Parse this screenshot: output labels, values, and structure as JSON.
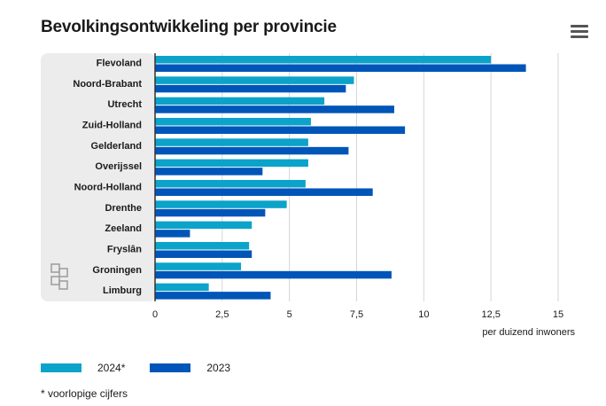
{
  "title": "Bevolkingsontwikkeling per provincie",
  "footnote": "* voorlopige cijfers",
  "icons": {
    "menu": "hamburger-menu-icon",
    "logo": "cbs-logo-icon"
  },
  "colors": {
    "series_2024": "#0ba3c9",
    "series_2023": "#0055b8",
    "panel": "#ececec",
    "grid": "#d6d6d6"
  },
  "chart_data": {
    "type": "bar",
    "orientation": "horizontal",
    "title": "Bevolkingsontwikkeling per provincie",
    "xlabel": "per duizend inwoners",
    "ylabel": "",
    "xlim": [
      0,
      15
    ],
    "xticks": [
      0,
      2.5,
      5,
      7.5,
      10,
      12.5,
      15
    ],
    "xtick_labels": [
      "0",
      "2,5",
      "5",
      "7,5",
      "10",
      "12,5",
      "15"
    ],
    "grid": true,
    "legend_position": "bottom-left",
    "categories": [
      "Flevoland",
      "Noord-Brabant",
      "Utrecht",
      "Zuid-Holland",
      "Gelderland",
      "Overijssel",
      "Noord-Holland",
      "Drenthe",
      "Zeeland",
      "Fryslân",
      "Groningen",
      "Limburg"
    ],
    "series": [
      {
        "name": "2024*",
        "color": "#0ba3c9",
        "values": [
          12.5,
          7.4,
          6.3,
          5.8,
          5.7,
          5.7,
          5.6,
          4.9,
          3.6,
          3.5,
          3.2,
          2.0
        ]
      },
      {
        "name": "2023",
        "color": "#0055b8",
        "values": [
          13.8,
          7.1,
          8.9,
          9.3,
          7.2,
          4.0,
          8.1,
          4.1,
          1.3,
          3.6,
          8.8,
          4.3
        ]
      }
    ]
  }
}
